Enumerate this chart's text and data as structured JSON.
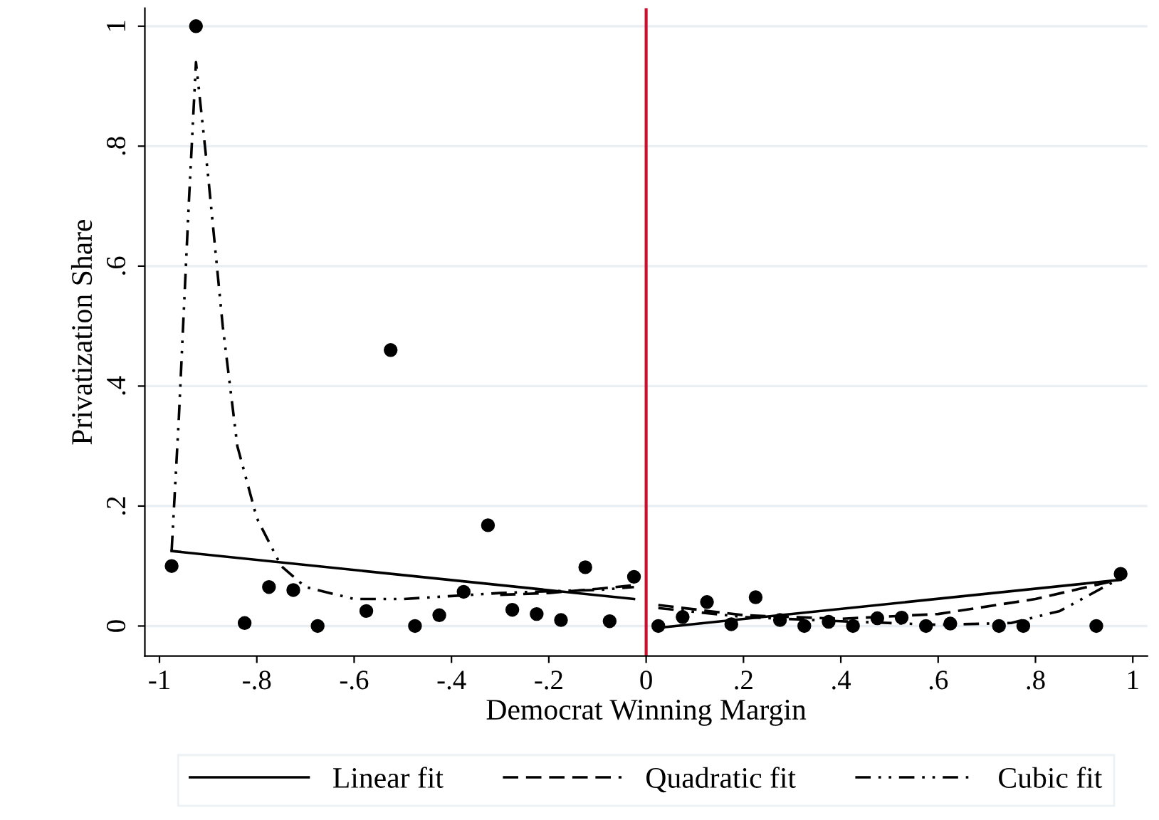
{
  "chart_data": {
    "type": "scatter",
    "xlabel": "Democrat Winning Margin",
    "ylabel": "Privatization Share",
    "xlim": [
      -1.03,
      1.03
    ],
    "ylim": [
      -0.05,
      1.03
    ],
    "xticks": [
      -1,
      {
        "value": -0.8,
        "label": "-.8"
      },
      {
        "value": -0.6,
        "label": "-.6"
      },
      {
        "value": -0.4,
        "label": "-.4"
      },
      {
        "value": -0.2,
        "label": "-.2"
      },
      0,
      {
        "value": 0.2,
        "label": ".2"
      },
      {
        "value": 0.4,
        "label": ".4"
      },
      {
        "value": 0.6,
        "label": ".6"
      },
      {
        "value": 0.8,
        "label": ".8"
      },
      1
    ],
    "yticks": [
      0,
      {
        "value": 0.2,
        "label": ".2"
      },
      {
        "value": 0.4,
        "label": ".4"
      },
      {
        "value": 0.6,
        "label": ".6"
      },
      {
        "value": 0.8,
        "label": ".8"
      },
      1
    ],
    "grid": "y",
    "legend": "bottom",
    "ref_lines": [
      {
        "axis": "x",
        "value": 0,
        "color": "#c8102e"
      }
    ],
    "series": [
      {
        "marker": "circle",
        "color": "#000000",
        "x": [
          -0.975,
          -0.925,
          -0.825,
          -0.775,
          -0.725,
          -0.675,
          -0.575,
          -0.525,
          -0.475,
          -0.425,
          -0.375,
          -0.325,
          -0.275,
          -0.225,
          -0.175,
          -0.125,
          -0.075,
          -0.025,
          0.025,
          0.075,
          0.125,
          0.175,
          0.225,
          0.275,
          0.325,
          0.375,
          0.425,
          0.475,
          0.525,
          0.575,
          0.625,
          0.725,
          0.775,
          0.925,
          0.975
        ],
        "values": [
          0.1,
          1.0,
          0.005,
          0.065,
          0.06,
          0.0,
          0.025,
          0.46,
          0.0,
          0.018,
          0.057,
          0.168,
          0.027,
          0.02,
          0.01,
          0.098,
          0.008,
          0.082,
          0.0,
          0.015,
          0.04,
          0.003,
          0.048,
          0.01,
          0.0,
          0.007,
          0.0,
          0.013,
          0.014,
          0.0,
          0.004,
          0.0,
          0.0,
          0.0,
          0.087
        ]
      },
      {
        "type": "line",
        "name": "Linear fit",
        "color": "#000000",
        "line_style": "solid",
        "x": [
          -0.975,
          -0.025,
          0.0,
          0.025,
          0.975
        ],
        "values": [
          0.125,
          0.045,
          null,
          -0.003,
          0.077
        ]
      },
      {
        "type": "line",
        "name": "Quadratic fit",
        "color": "#000000",
        "line_style": "dashed",
        "x": [
          -0.3,
          -0.2,
          -0.1,
          -0.025,
          0.0,
          0.025,
          0.2,
          0.4,
          0.6,
          0.8,
          0.975
        ],
        "values": [
          0.052,
          0.055,
          0.062,
          0.068,
          null,
          0.035,
          0.018,
          0.012,
          0.02,
          0.045,
          0.078
        ]
      },
      {
        "type": "line",
        "name": "Cubic fit",
        "color": "#000000",
        "line_style": "dashdot",
        "x": [
          -0.975,
          -0.96,
          -0.94,
          -0.925,
          -0.9,
          -0.87,
          -0.84,
          -0.8,
          -0.75,
          -0.7,
          -0.6,
          -0.5,
          -0.4,
          -0.3,
          -0.2,
          -0.1,
          -0.025,
          0.0,
          0.025,
          0.2,
          0.4,
          0.6,
          0.75,
          0.85,
          0.975
        ],
        "values": [
          0.125,
          0.35,
          0.7,
          0.94,
          0.75,
          0.5,
          0.3,
          0.18,
          0.1,
          0.065,
          0.045,
          0.045,
          0.05,
          0.055,
          0.058,
          0.06,
          0.065,
          null,
          0.03,
          0.015,
          0.008,
          0.002,
          0.005,
          0.025,
          0.08
        ]
      }
    ]
  }
}
